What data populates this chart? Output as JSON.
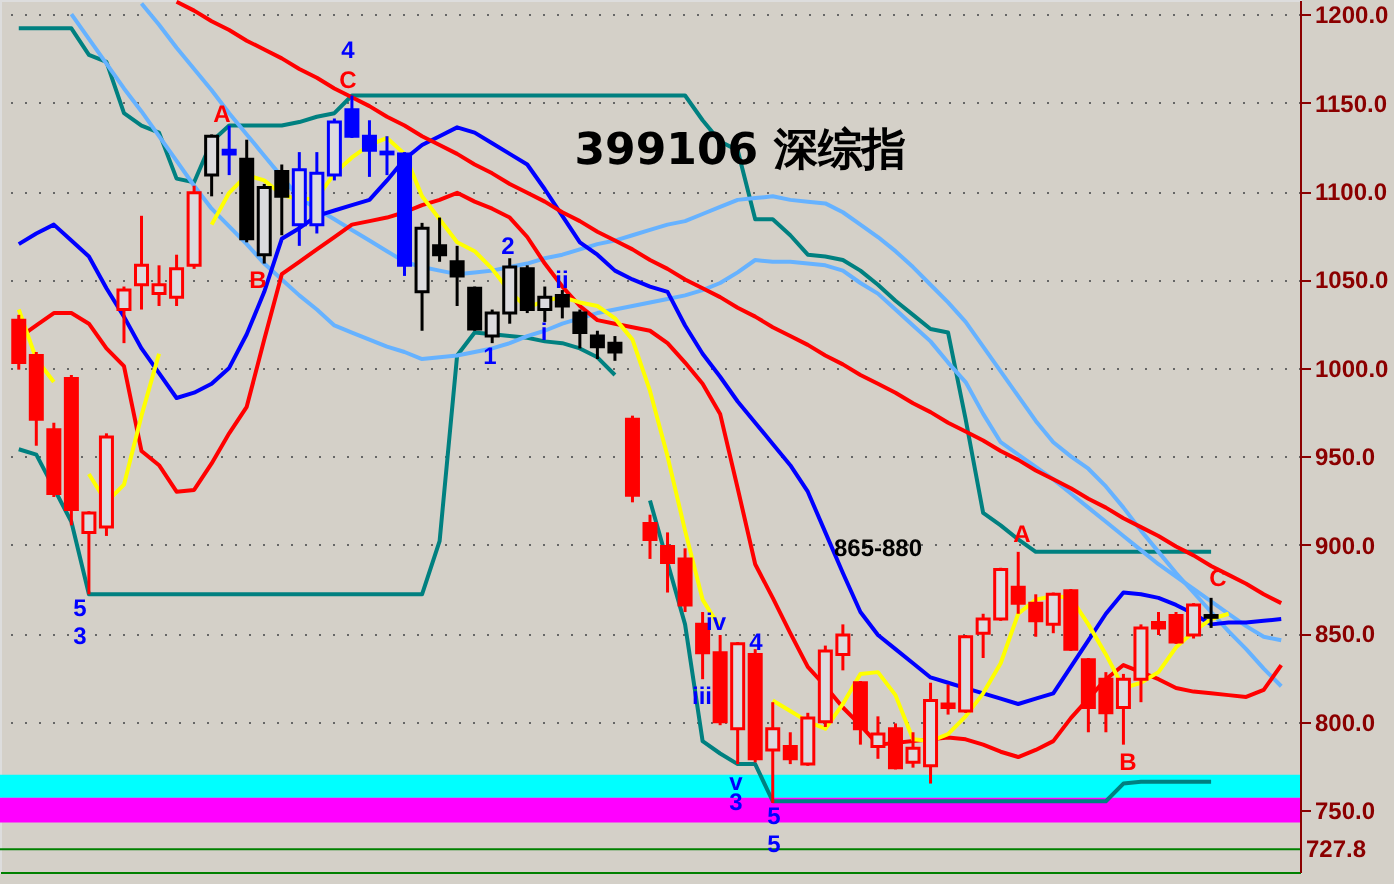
{
  "chart_data": {
    "type": "candlestick",
    "title": "399106 深综指",
    "categories": [
      null,
      null,
      null,
      null,
      null,
      null,
      null,
      null,
      null,
      null,
      null,
      null,
      null,
      null,
      null,
      null,
      null,
      null,
      null,
      null,
      null,
      null,
      null,
      null,
      null,
      null,
      null,
      null,
      null,
      null,
      null,
      null,
      null,
      null,
      null,
      null,
      null,
      null,
      null,
      null,
      null,
      null,
      null,
      null,
      null,
      null,
      null,
      null,
      null,
      null,
      null,
      null,
      null,
      null,
      null,
      null,
      null,
      null,
      null,
      null,
      null,
      null,
      null,
      null,
      null,
      null,
      null,
      null,
      null,
      null,
      null,
      null,
      null
    ],
    "ohlc": [
      [
        1027,
        1030,
        999,
        1003
      ],
      [
        1007,
        1009,
        956,
        971
      ],
      [
        965,
        969,
        927,
        929
      ],
      [
        994,
        996,
        911,
        920
      ],
      [
        907,
        919,
        872,
        918
      ],
      [
        910,
        963,
        905,
        961
      ],
      [
        1033,
        1046,
        1014,
        1044
      ],
      [
        1047,
        1086,
        1033,
        1058
      ],
      [
        1042,
        1058,
        1035,
        1047
      ],
      [
        1040,
        1064,
        1035,
        1056
      ],
      [
        1058,
        1103,
        1056,
        1099
      ],
      [
        1109,
        1132,
        1097,
        1131
      ],
      [
        1123,
        1137,
        1109,
        1121
      ],
      [
        1118,
        1129,
        1071,
        1073
      ],
      [
        1064,
        1104,
        1059,
        1102
      ],
      [
        1111,
        1115,
        1075,
        1097
      ],
      [
        1081,
        1122,
        1069,
        1112
      ],
      [
        1081,
        1122,
        1076,
        1110
      ],
      [
        1109,
        1141,
        1106,
        1139
      ],
      [
        1146,
        1154,
        1130,
        1131
      ],
      [
        1131,
        1140,
        1108,
        1123
      ],
      [
        1122,
        1131,
        1109,
        1121
      ],
      [
        1121,
        1122,
        1052,
        1058
      ],
      [
        1043,
        1082,
        1021,
        1079
      ],
      [
        1069,
        1085,
        1060,
        1064
      ],
      [
        1060,
        1069,
        1035,
        1052
      ],
      [
        1045,
        1046,
        1021,
        1022
      ],
      [
        1018,
        1033,
        1014,
        1031
      ],
      [
        1031,
        1062,
        1025,
        1057
      ],
      [
        1056,
        1058,
        1031,
        1033
      ],
      [
        1033,
        1046,
        1026,
        1040
      ],
      [
        1041,
        1044,
        1028,
        1035
      ],
      [
        1031,
        1033,
        1011,
        1020
      ],
      [
        1018,
        1021,
        1005,
        1012
      ],
      [
        1014,
        1018,
        1004,
        1009
      ],
      [
        971,
        973,
        924,
        928
      ],
      [
        912,
        917,
        892,
        903
      ],
      [
        899,
        907,
        873,
        890
      ],
      [
        892,
        898,
        862,
        866
      ],
      [
        855,
        862,
        824,
        839
      ],
      [
        839,
        849,
        798,
        800
      ],
      [
        796,
        845,
        776,
        844
      ],
      [
        838,
        841,
        777,
        779
      ],
      [
        784,
        811,
        754,
        796
      ],
      [
        786,
        794,
        776,
        779
      ],
      [
        776,
        805,
        775,
        802
      ],
      [
        800,
        843,
        797,
        840
      ],
      [
        838,
        855,
        829,
        849
      ],
      [
        822,
        823,
        787,
        796
      ],
      [
        786,
        803,
        779,
        793
      ],
      [
        796,
        799,
        773,
        774
      ],
      [
        777,
        794,
        774,
        785
      ],
      [
        775,
        822,
        765,
        812
      ],
      [
        810,
        821,
        804,
        808
      ],
      [
        806,
        849,
        805,
        848
      ],
      [
        850,
        861,
        836,
        858
      ],
      [
        858,
        887,
        857,
        886
      ],
      [
        876,
        896,
        861,
        867
      ],
      [
        867,
        872,
        848,
        857
      ],
      [
        855,
        873,
        850,
        872
      ],
      [
        874,
        875,
        840,
        841
      ],
      [
        835,
        836,
        794,
        808
      ],
      [
        824,
        828,
        794,
        805
      ],
      [
        808,
        827,
        787,
        824
      ],
      [
        824,
        855,
        811,
        853
      ],
      [
        856,
        862,
        849,
        853
      ],
      [
        860,
        862,
        844,
        845
      ],
      [
        849,
        867,
        847,
        866
      ],
      [
        860,
        870,
        853,
        859
      ],
      null,
      null,
      null,
      null
    ],
    "colors": [
      "#ff0000",
      "#ff0000",
      "#ff0000",
      "#ff0000",
      "#ff0000",
      "#ff0000",
      "#ff0000",
      "#ff0000",
      "#ff0000",
      "#ff0000",
      "#ff0000",
      "#000000",
      "#0000ff",
      "#000000",
      "#000000",
      "#000000",
      "#0000ff",
      "#0000ff",
      "#0000ff",
      "#0000ff",
      "#0000ff",
      "#0000ff",
      "#0000ff",
      "#000000",
      "#000000",
      "#000000",
      "#000000",
      "#000000",
      "#000000",
      "#000000",
      "#000000",
      "#000000",
      "#000000",
      "#000000",
      "#000000",
      "#ff0000",
      "#ff0000",
      "#ff0000",
      "#ff0000",
      "#ff0000",
      "#ff0000",
      "#ff0000",
      "#ff0000",
      "#ff0000",
      "#ff0000",
      "#ff0000",
      "#ff0000",
      "#ff0000",
      "#ff0000",
      "#ff0000",
      "#ff0000",
      "#ff0000",
      "#ff0000",
      "#ff0000",
      "#ff0000",
      "#ff0000",
      "#ff0000",
      "#ff0000",
      "#ff0000",
      "#ff0000",
      "#ff0000",
      "#ff0000",
      "#ff0000",
      "#ff0000",
      "#ff0000",
      "#ff0000",
      "#ff0000",
      "#ff0000",
      "#000000",
      null,
      null,
      null,
      null
    ],
    "series": [
      {
        "type": "line",
        "color": "#008080",
        "values": [
          1192,
          1192,
          1192,
          1192,
          1177,
          1173,
          1144,
          1137,
          1133,
          1107,
          1105,
          1128,
          1137,
          1137,
          1137,
          1137,
          1139,
          1142,
          1144,
          1154,
          1154,
          1154,
          1154,
          1154,
          1154,
          1154,
          1154,
          1154,
          1154,
          1154,
          1154,
          1154,
          1154,
          1154,
          1154,
          1154,
          1154,
          1154,
          1154,
          1140,
          1128,
          1123,
          1084,
          1084,
          1075,
          1064,
          1063,
          1061,
          1055,
          1047,
          1038,
          1030,
          1022,
          1020,
          971,
          918,
          911,
          903,
          896,
          896,
          896,
          896,
          896,
          896,
          896,
          896,
          896,
          896,
          896,
          null,
          null,
          null,
          null
        ]
      },
      {
        "type": "line",
        "color": "#008080",
        "values": [
          954,
          951,
          932,
          913,
          872,
          872,
          872,
          872,
          872,
          872,
          872,
          872,
          872,
          872,
          872,
          872,
          872,
          872,
          872,
          872,
          872,
          872,
          872,
          872,
          902,
          1007,
          1020,
          1019,
          1018,
          1017,
          1015,
          1014,
          1011,
          1006,
          996,
          null,
          925,
          890,
          855,
          789,
          782,
          776,
          776,
          755,
          755,
          755,
          755,
          755,
          755,
          755,
          755,
          755,
          755,
          755,
          755,
          755,
          755,
          755,
          755,
          755,
          755,
          755,
          755,
          765,
          766,
          766,
          766,
          766,
          766,
          null,
          null,
          null,
          null
        ]
      },
      {
        "type": "line",
        "color": "#66b2ff",
        "values": [
          null,
          null,
          null,
          null,
          null,
          null,
          null,
          1206,
          1194,
          1181,
          1169,
          1157,
          1144,
          1132,
          1120,
          1108,
          1096,
          1090,
          1084,
          1078,
          1072,
          1066,
          1060,
          1057,
          1055,
          1053,
          1054,
          1055,
          1057,
          1059,
          1062,
          1064,
          1067,
          1070,
          1072,
          1075,
          1078,
          1081,
          1083,
          1087,
          1091,
          1095,
          1096,
          1097,
          1095,
          1094,
          1093,
          1088,
          1081,
          1074,
          1066,
          1057,
          1047,
          1037,
          1026,
          1012,
          998,
          984,
          970,
          958,
          950,
          943,
          933,
          921,
          908,
          896,
          884,
          873,
          862,
          851,
          841,
          830,
          820
        ]
      },
      {
        "type": "line",
        "color": "#66b2ff",
        "values": [
          null,
          null,
          null,
          1200,
          1186,
          1172,
          1158,
          1145,
          1131,
          1117,
          1103,
          1090,
          1080,
          1070,
          1059,
          1050,
          1041,
          1033,
          1024,
          1020,
          1016,
          1012,
          1009,
          1005,
          1006,
          1007,
          1009,
          1011,
          1014,
          1018,
          1021,
          1025,
          1028,
          1031,
          1033,
          1035,
          1037,
          1039,
          1041,
          1044,
          1048,
          1054,
          1061,
          1060,
          1060,
          1059,
          1058,
          1055,
          1048,
          1042,
          1033,
          1024,
          1015,
          1003,
          992,
          974,
          958,
          951,
          944,
          937,
          929,
          921,
          913,
          905,
          897,
          889,
          882,
          875,
          868,
          861,
          854,
          848,
          846
        ]
      },
      {
        "type": "line",
        "color": "#0000ff",
        "values": [
          1070,
          1076,
          1081,
          1072,
          1063,
          1045,
          1029,
          1011,
          997,
          983,
          986,
          991,
          1000,
          1019,
          1043,
          1073,
          1079,
          1086,
          1089,
          1092,
          1095,
          1106,
          1118,
          1126,
          1131,
          1136,
          1133,
          1127,
          1121,
          1115,
          1101,
          1086,
          1071,
          1064,
          1055,
          1050,
          1046,
          1043,
          1024,
          1008,
          995,
          981,
          969,
          957,
          945,
          930,
          907,
          884,
          862,
          849,
          841,
          833,
          825,
          822,
          819,
          816,
          813,
          810,
          813,
          816,
          831,
          846,
          861,
          873,
          872,
          870,
          866,
          861,
          855,
          856,
          856,
          857,
          858
        ]
      },
      {
        "type": "line",
        "color": "#ff0000",
        "values": [
          1017,
          1024,
          1031,
          1031,
          1025,
          1011,
          1001,
          953,
          945,
          930,
          931,
          946,
          963,
          978,
          1016,
          1053,
          1060,
          1067,
          1074,
          1081,
          1083,
          1085,
          1088,
          1092,
          1095,
          1099,
          1094,
          1090,
          1085,
          1074,
          1059,
          1046,
          1035,
          1027,
          1025,
          1023,
          1021,
          1014,
          1003,
          991,
          974,
          932,
          889,
          870,
          850,
          831,
          820,
          808,
          798,
          787,
          788,
          789,
          790,
          791,
          790,
          787,
          783,
          780,
          784,
          789,
          802,
          813,
          824,
          832,
          828,
          824,
          819,
          817,
          816,
          815,
          814,
          818,
          832
        ]
      },
      {
        "type": "line",
        "color": "#ffff00",
        "values": [
          1033,
          1005,
          992,
          null,
          940,
          924,
          934,
          973,
          1008,
          null,
          null,
          1081,
          1099,
          1109,
          1106,
          1098,
          1095,
          1096,
          1110,
          1119,
          1126,
          1130,
          1121,
          1097,
          1084,
          1071,
          1066,
          1056,
          1043,
          1034,
          1038,
          1040,
          1037,
          1035,
          1028,
          1016,
          987,
          950,
          908,
          869,
          853,
          null,
          null,
          812,
          806,
          800,
          796,
          810,
          827,
          828,
          815,
          790,
          789,
          793,
          803,
          816,
          833,
          861,
          869,
          871,
          870,
          855,
          838,
          819,
          822,
          828,
          842,
          851,
          858,
          861,
          null,
          null,
          null
        ]
      },
      {
        "type": "line",
        "color": "#ff0000",
        "values": [
          null,
          null,
          null,
          null,
          null,
          null,
          null,
          null,
          null,
          1207,
          1202,
          1196,
          1191,
          1185,
          1180,
          1175,
          1169,
          1164,
          1158,
          1153,
          1148,
          1142,
          1137,
          1131,
          1126,
          1121,
          1115,
          1110,
          1104,
          1099,
          1094,
          1088,
          1083,
          1077,
          1072,
          1067,
          1061,
          1056,
          1050,
          1045,
          1040,
          1034,
          1029,
          1023,
          1018,
          1013,
          1007,
          1002,
          996,
          991,
          986,
          980,
          975,
          969,
          964,
          959,
          953,
          948,
          942,
          937,
          932,
          926,
          921,
          915,
          910,
          905,
          899,
          894,
          888,
          883,
          878,
          872,
          867
        ]
      }
    ],
    "ylim": [
      715,
      1208
    ],
    "yticks": [
      {
        "value": 750,
        "label": "750.0"
      },
      {
        "value": 800,
        "label": "800.0"
      },
      {
        "value": 850,
        "label": "850.0"
      },
      {
        "value": 900,
        "label": "900.0"
      },
      {
        "value": 950,
        "label": "950.0"
      },
      {
        "value": 1000,
        "label": "1000.0"
      },
      {
        "value": 1050,
        "label": "1050.0"
      },
      {
        "value": 1100,
        "label": "1100.0"
      },
      {
        "value": 1150,
        "label": "1150.0"
      },
      {
        "value": 1200,
        "label": "1200.0"
      }
    ],
    "tick_labels": "y",
    "grid": "y",
    "bands": [
      {
        "axis": "y",
        "from": 757,
        "to": 770,
        "color": "#00ffff"
      },
      {
        "axis": "y",
        "from": 743,
        "to": 757,
        "color": "#ff00ff"
      }
    ],
    "ref_lines": [
      {
        "axis": "y",
        "value": 727.8,
        "label": "727.8",
        "color": "#008000"
      }
    ],
    "annotations": [
      "4",
      "C",
      "A",
      "B",
      "5",
      "3",
      "1",
      "2",
      "i",
      "ii",
      "iv",
      "iii",
      "4",
      "v",
      "3",
      "5",
      "5",
      "A",
      "865-880",
      "B",
      "C"
    ]
  }
}
